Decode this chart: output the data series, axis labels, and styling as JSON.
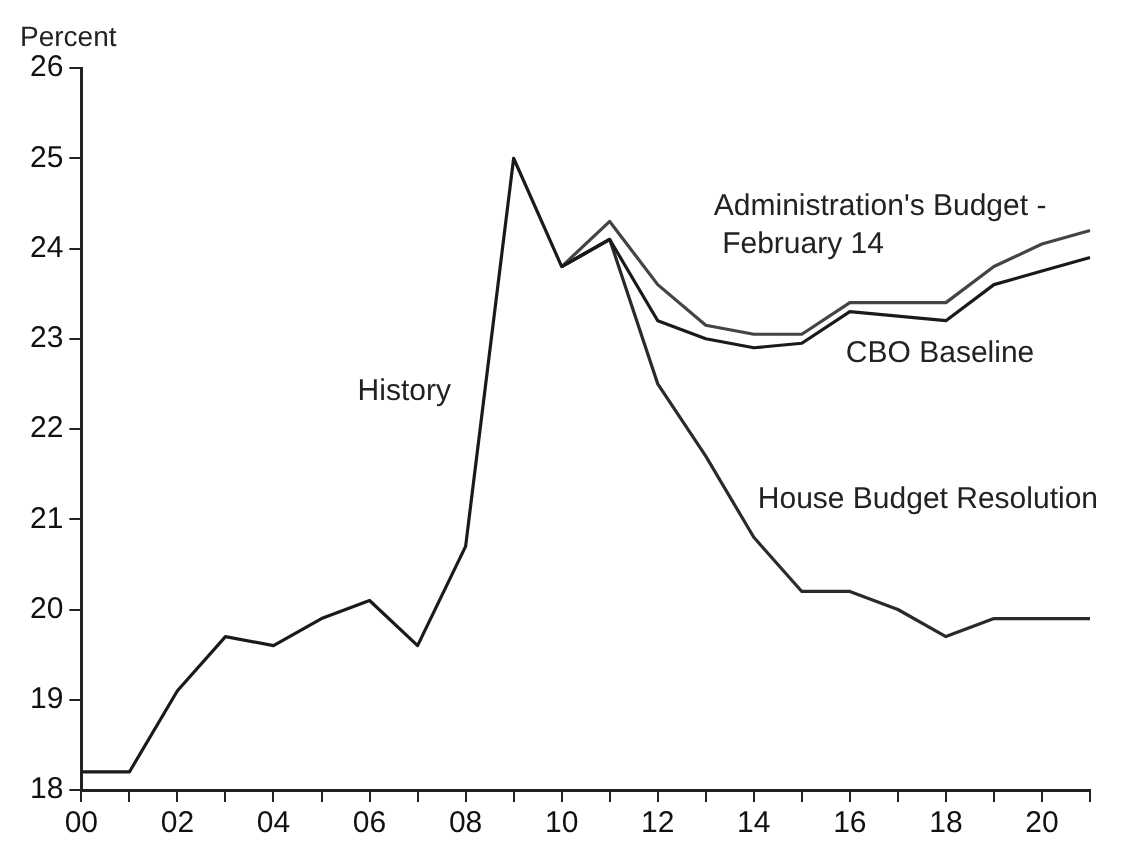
{
  "chart_data": {
    "type": "line",
    "ylabel": "Percent",
    "categories": [
      "00",
      null,
      "02",
      null,
      "04",
      null,
      "06",
      null,
      "08",
      null,
      "10",
      null,
      "12",
      null,
      "14",
      null,
      "16",
      null,
      "18",
      null,
      "20",
      null
    ],
    "ylim": [
      18,
      26
    ],
    "yticks": [
      18,
      19,
      20,
      21,
      22,
      23,
      24,
      25,
      26
    ],
    "grid": false,
    "legend": false,
    "marker": "none",
    "line_style": "solid",
    "series": [
      {
        "name": "History",
        "color": "#1a1a1a",
        "values": [
          18.2,
          18.2,
          19.1,
          19.7,
          19.6,
          19.9,
          20.1,
          19.6,
          20.7,
          25.0,
          23.8,
          24.1,
          null,
          null,
          null,
          null,
          null,
          null,
          null,
          null,
          null,
          null
        ]
      },
      {
        "name": "Administration's Budget - February 14",
        "color": "#444444",
        "values": [
          null,
          null,
          null,
          null,
          null,
          null,
          null,
          null,
          null,
          null,
          23.8,
          24.3,
          23.6,
          23.15,
          23.05,
          23.05,
          23.4,
          23.4,
          23.4,
          23.8,
          24.05,
          24.2
        ]
      },
      {
        "name": "CBO Baseline",
        "color": "#1a1a1a",
        "values": [
          null,
          null,
          null,
          null,
          null,
          null,
          null,
          null,
          null,
          null,
          23.8,
          24.1,
          23.2,
          23.0,
          22.9,
          22.95,
          23.3,
          23.25,
          23.2,
          23.6,
          23.75,
          23.9
        ]
      },
      {
        "name": "House Budget Resolution",
        "color": "#2a2a2a",
        "values": [
          null,
          null,
          null,
          null,
          null,
          null,
          null,
          null,
          null,
          null,
          23.8,
          24.1,
          22.5,
          21.7,
          20.8,
          20.2,
          20.2,
          20.0,
          19.7,
          19.9,
          19.9,
          19.9
        ]
      }
    ]
  }
}
